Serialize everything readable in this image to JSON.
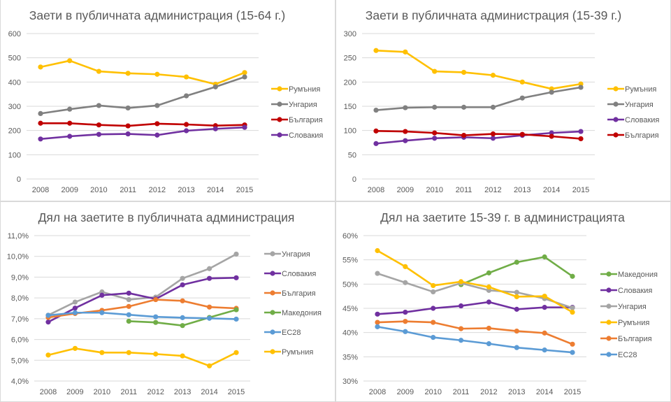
{
  "chart_data": [
    {
      "type": "line",
      "title": "Заети в публичната администрация (15-64 г.)",
      "xlabel": "",
      "ylabel": "",
      "categories": [
        "2008",
        "2009",
        "2010",
        "2011",
        "2012",
        "2013",
        "2014",
        "2015"
      ],
      "ylim": [
        0,
        600
      ],
      "yticks": [
        0,
        100,
        200,
        300,
        400,
        500,
        600
      ],
      "ytick_labels": [
        "0",
        "100",
        "200",
        "300",
        "400",
        "500",
        "600"
      ],
      "grid": true,
      "legend_position": "right",
      "series": [
        {
          "name": "Румъния",
          "color": "#FFC000",
          "values": [
            462,
            488,
            444,
            436,
            432,
            421,
            391,
            439
          ]
        },
        {
          "name": "Унгария",
          "color": "#808080",
          "values": [
            270,
            288,
            303,
            293,
            303,
            343,
            380,
            421
          ]
        },
        {
          "name": "България",
          "color": "#C00000",
          "values": [
            230,
            230,
            223,
            219,
            228,
            225,
            220,
            223
          ]
        },
        {
          "name": "Словакия",
          "color": "#7030A0",
          "values": [
            165,
            176,
            184,
            186,
            181,
            199,
            207,
            213
          ]
        }
      ]
    },
    {
      "type": "line",
      "title": "Заети в публичната администрация (15-39 г.)",
      "xlabel": "",
      "ylabel": "",
      "categories": [
        "2008",
        "2009",
        "2010",
        "2011",
        "2012",
        "2013",
        "2014",
        "2015"
      ],
      "ylim": [
        0,
        300
      ],
      "yticks": [
        0,
        50,
        100,
        150,
        200,
        250,
        300
      ],
      "ytick_labels": [
        "0",
        "50",
        "100",
        "150",
        "200",
        "250",
        "300"
      ],
      "grid": true,
      "legend_position": "right",
      "series": [
        {
          "name": "Румъния",
          "color": "#FFC000",
          "values": [
            265,
            262,
            222,
            220,
            214,
            200,
            186,
            196
          ]
        },
        {
          "name": "Унгария",
          "color": "#808080",
          "values": [
            142,
            147,
            148,
            148,
            148,
            167,
            179,
            189
          ]
        },
        {
          "name": "Словакия",
          "color": "#7030A0",
          "values": [
            73,
            79,
            84,
            86,
            84,
            90,
            95,
            98
          ]
        },
        {
          "name": "България",
          "color": "#C00000",
          "values": [
            99,
            98,
            95,
            90,
            93,
            92,
            88,
            83
          ]
        }
      ]
    },
    {
      "type": "line",
      "title": "Дял на заетите в публичната администрация",
      "xlabel": "",
      "ylabel": "",
      "categories": [
        "2008",
        "2009",
        "2010",
        "2011",
        "2012",
        "2013",
        "2014",
        "2015"
      ],
      "ylim": [
        4.0,
        11.0
      ],
      "yticks": [
        4,
        5,
        6,
        7,
        8,
        9,
        10,
        11
      ],
      "ytick_labels": [
        "4,0%",
        "5,0%",
        "6,0%",
        "7,0%",
        "8,0%",
        "9,0%",
        "10,0%",
        "11,0%"
      ],
      "grid": true,
      "legend_position": "right",
      "series": [
        {
          "name": "Унгария",
          "color": "#A5A5A5",
          "values": [
            7.17,
            7.8,
            8.29,
            7.92,
            8.04,
            8.94,
            9.41,
            10.11
          ]
        },
        {
          "name": "Словакия",
          "color": "#7030A0",
          "values": [
            6.84,
            7.51,
            8.13,
            8.23,
            7.95,
            8.63,
            8.94,
            8.97
          ]
        },
        {
          "name": "България",
          "color": "#ED7D31",
          "values": [
            7.06,
            7.25,
            7.4,
            7.59,
            7.92,
            7.86,
            7.56,
            7.5
          ]
        },
        {
          "name": "Македония",
          "color": "#70AD47",
          "values": [
            null,
            null,
            null,
            6.88,
            6.82,
            6.67,
            7.06,
            7.43
          ]
        },
        {
          "name": "ЕС28",
          "color": "#5B9BD5",
          "values": [
            7.16,
            7.29,
            7.29,
            7.19,
            7.09,
            7.05,
            7.02,
            6.98
          ]
        },
        {
          "name": "Румъния",
          "color": "#FFC000",
          "values": [
            5.25,
            5.57,
            5.37,
            5.37,
            5.3,
            5.21,
            4.73,
            5.37
          ]
        }
      ]
    },
    {
      "type": "line",
      "title": "Дял на заетите 15-39 г. в администрацията",
      "xlabel": "",
      "ylabel": "",
      "categories": [
        "2008",
        "2009",
        "2010",
        "2011",
        "2012",
        "2013",
        "2014",
        "2015"
      ],
      "ylim": [
        30,
        60
      ],
      "yticks": [
        30,
        35,
        40,
        45,
        50,
        55,
        60
      ],
      "ytick_labels": [
        "30%",
        "35%",
        "40%",
        "45%",
        "50%",
        "55%",
        "60%"
      ],
      "grid": true,
      "legend_position": "right",
      "series": [
        {
          "name": "Македония",
          "color": "#70AD47",
          "values": [
            null,
            null,
            null,
            49.9,
            52.3,
            54.5,
            55.6,
            51.6
          ]
        },
        {
          "name": "Словакия",
          "color": "#7030A0",
          "values": [
            43.8,
            44.2,
            45.0,
            45.5,
            46.3,
            44.8,
            45.2,
            45.2
          ]
        },
        {
          "name": "Унгария",
          "color": "#A5A5A5",
          "values": [
            52.2,
            50.3,
            48.4,
            50.2,
            48.7,
            48.3,
            47.0,
            45.1
          ]
        },
        {
          "name": "Румъния",
          "color": "#FFC000",
          "values": [
            56.9,
            53.6,
            49.7,
            50.5,
            49.4,
            47.4,
            47.5,
            44.2
          ]
        },
        {
          "name": "България",
          "color": "#ED7D31",
          "values": [
            42.1,
            42.3,
            42.1,
            40.8,
            40.9,
            40.3,
            39.9,
            37.6
          ]
        },
        {
          "name": "ЕС28",
          "color": "#5B9BD5",
          "values": [
            41.2,
            40.2,
            39.0,
            38.4,
            37.7,
            36.9,
            36.4,
            35.9
          ]
        }
      ]
    }
  ]
}
